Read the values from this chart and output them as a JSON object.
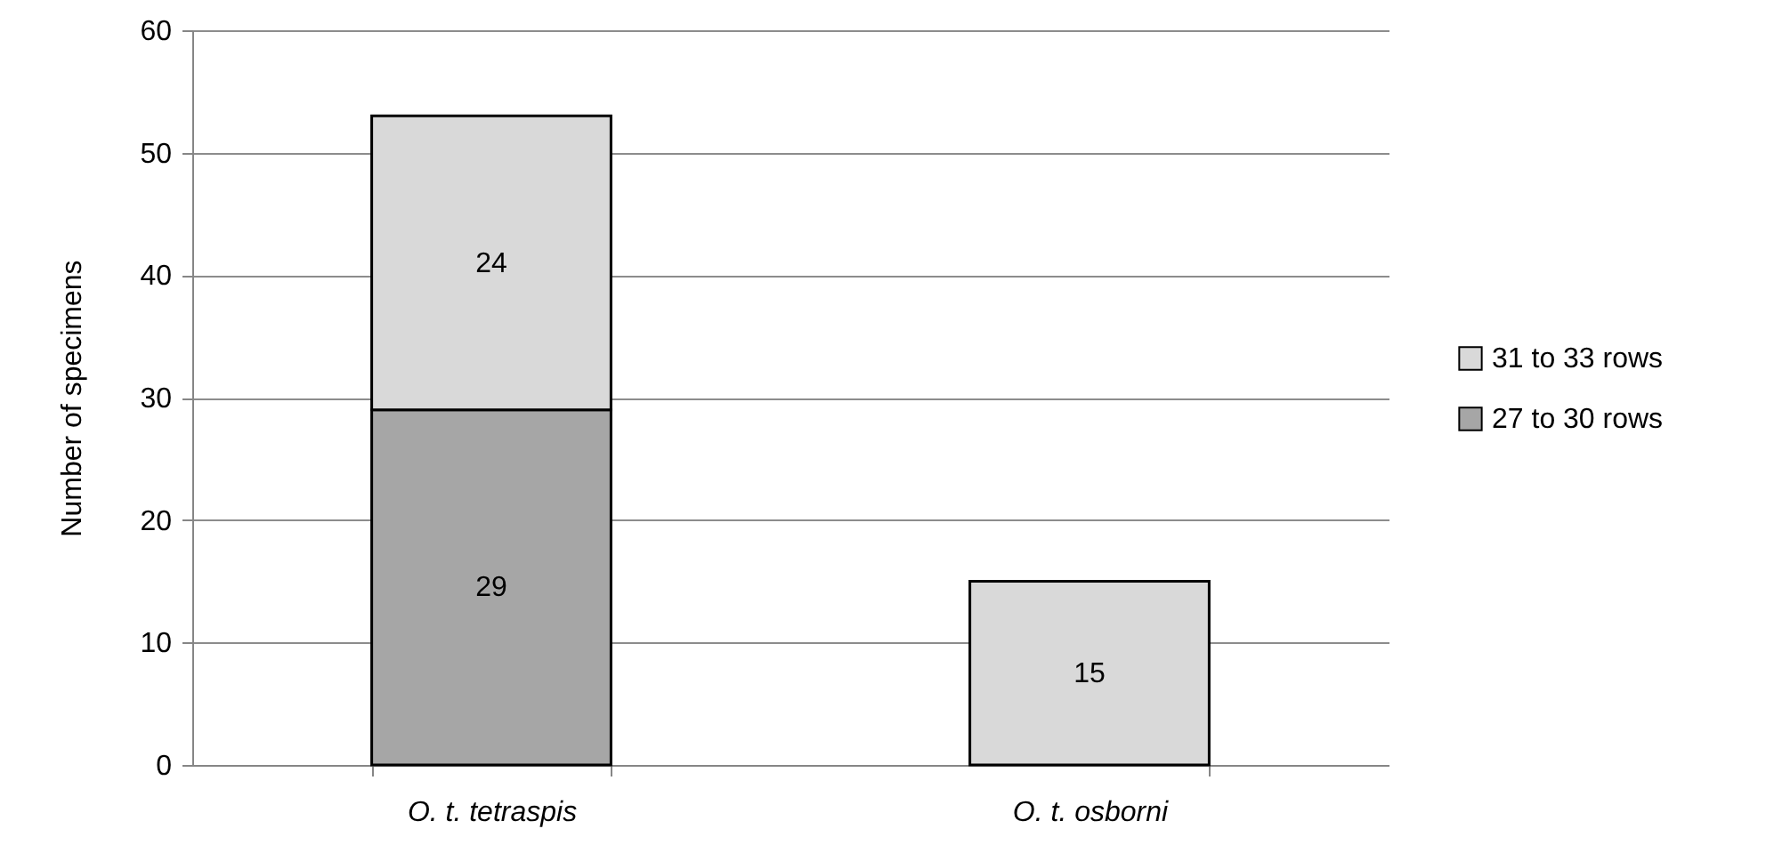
{
  "chart_data": {
    "type": "bar",
    "ylabel": "Number of specimens",
    "categories": [
      "O. t. tetraspis",
      "O. t. osborni"
    ],
    "series": [
      {
        "name": "27 to 30 rows",
        "color": "#a6a6a6",
        "values": [
          29,
          null
        ]
      },
      {
        "name": "31 to 33 rows",
        "color": "#d9d9d9",
        "values": [
          24,
          15
        ]
      }
    ],
    "stacked": true,
    "data_labels": true,
    "ylim": [
      0,
      60
    ],
    "yticks": [
      0,
      10,
      20,
      30,
      40,
      50,
      60
    ],
    "grid": "y",
    "legend": "right"
  }
}
